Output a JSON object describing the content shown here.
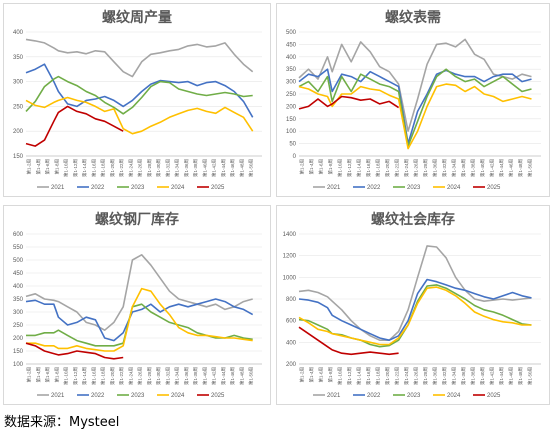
{
  "source_label": "数据来源：Mysteel",
  "series_names": [
    "2021",
    "2022",
    "2023",
    "2024",
    "2025"
  ],
  "series_colors": [
    "#a5a5a5",
    "#4472c4",
    "#70ad47",
    "#ffc000",
    "#c00000"
  ],
  "x_tick_labels": [
    "第1-2周",
    "第1-4周",
    "第1-6周",
    "第1-8周",
    "第1-10周",
    "第1-12周",
    "第1-14周",
    "第1-16周",
    "第1-18周",
    "第1-20周",
    "第1-22周",
    "第1-24周",
    "第1-26周",
    "第1-28周",
    "第1-30周",
    "第1-32周",
    "第1-34周",
    "第1-36周",
    "第1-38周",
    "第1-40周",
    "第1-42周",
    "第1-44周",
    "第1-46周",
    "第1-48周",
    "第1-50周"
  ],
  "chart_data": [
    {
      "type": "line",
      "title": "螺纹周产量",
      "ylim": [
        150,
        400
      ],
      "yticks": [
        150,
        200,
        250,
        300,
        350,
        400
      ],
      "series": [
        {
          "name": "2021",
          "x": [
            1,
            3,
            5,
            7,
            8,
            10,
            12,
            14,
            16,
            18,
            20,
            22,
            24,
            26,
            28,
            30,
            32,
            34,
            36,
            38,
            40,
            42,
            44,
            46,
            48,
            50
          ],
          "values": [
            385,
            382,
            378,
            368,
            362,
            358,
            360,
            356,
            362,
            360,
            340,
            320,
            310,
            340,
            355,
            358,
            362,
            365,
            372,
            375,
            370,
            372,
            378,
            355,
            335,
            320
          ]
        },
        {
          "name": "2022",
          "x": [
            1,
            3,
            5,
            7,
            8,
            10,
            12,
            14,
            16,
            18,
            20,
            22,
            24,
            26,
            28,
            30,
            32,
            34,
            36,
            38,
            40,
            42,
            44,
            46,
            48,
            50
          ],
          "values": [
            318,
            325,
            335,
            300,
            280,
            255,
            250,
            262,
            265,
            270,
            262,
            250,
            262,
            280,
            295,
            302,
            300,
            298,
            300,
            292,
            298,
            300,
            292,
            280,
            260,
            228
          ]
        },
        {
          "name": "2023",
          "x": [
            1,
            3,
            5,
            7,
            8,
            10,
            12,
            14,
            16,
            18,
            20,
            22,
            24,
            26,
            28,
            30,
            32,
            34,
            36,
            38,
            40,
            42,
            44,
            46,
            48,
            50
          ],
          "values": [
            240,
            260,
            290,
            305,
            310,
            300,
            292,
            280,
            272,
            258,
            248,
            235,
            248,
            268,
            290,
            300,
            298,
            285,
            280,
            275,
            272,
            275,
            278,
            275,
            270,
            272
          ]
        },
        {
          "name": "2024",
          "x": [
            1,
            3,
            5,
            7,
            8,
            10,
            12,
            14,
            16,
            18,
            20,
            22,
            24,
            26,
            28,
            30,
            32,
            34,
            36,
            38,
            40,
            42,
            44,
            46,
            48,
            50
          ],
          "values": [
            262,
            252,
            248,
            258,
            262,
            268,
            262,
            258,
            250,
            240,
            245,
            205,
            195,
            200,
            210,
            218,
            228,
            235,
            242,
            246,
            240,
            236,
            248,
            238,
            228,
            200
          ]
        },
        {
          "name": "2025",
          "x": [
            1,
            3,
            5,
            7,
            8,
            10,
            12,
            14,
            16,
            18,
            20,
            22
          ],
          "values": [
            175,
            170,
            182,
            220,
            238,
            250,
            240,
            235,
            225,
            220,
            210,
            200
          ]
        }
      ]
    },
    {
      "type": "line",
      "title": "螺纹表需",
      "ylim": [
        0,
        500
      ],
      "yticks": [
        0,
        50,
        100,
        150,
        200,
        250,
        300,
        350,
        400,
        450,
        500
      ],
      "series": [
        {
          "name": "2021",
          "x": [
            1,
            3,
            5,
            7,
            8,
            10,
            12,
            14,
            16,
            18,
            20,
            22,
            24,
            26,
            28,
            30,
            32,
            34,
            36,
            38,
            40,
            42,
            44,
            46,
            48,
            50
          ],
          "values": [
            315,
            350,
            310,
            400,
            340,
            450,
            380,
            460,
            420,
            360,
            340,
            290,
            100,
            230,
            370,
            450,
            455,
            440,
            470,
            410,
            390,
            330,
            320,
            310,
            330,
            320
          ]
        },
        {
          "name": "2022",
          "x": [
            1,
            3,
            5,
            7,
            8,
            10,
            12,
            14,
            16,
            18,
            20,
            22,
            24,
            26,
            28,
            30,
            32,
            34,
            36,
            38,
            40,
            42,
            44,
            46,
            48,
            50
          ],
          "values": [
            300,
            330,
            320,
            350,
            260,
            330,
            320,
            300,
            340,
            320,
            300,
            280,
            50,
            180,
            250,
            330,
            345,
            330,
            320,
            320,
            300,
            320,
            330,
            330,
            300,
            310
          ]
        },
        {
          "name": "2023",
          "x": [
            1,
            3,
            5,
            7,
            8,
            10,
            12,
            14,
            16,
            18,
            20,
            22,
            24,
            26,
            28,
            30,
            32,
            34,
            36,
            38,
            40,
            42,
            44,
            46,
            48,
            50
          ],
          "values": [
            280,
            300,
            260,
            320,
            220,
            320,
            260,
            330,
            310,
            290,
            280,
            260,
            40,
            140,
            240,
            320,
            350,
            320,
            300,
            310,
            280,
            300,
            320,
            290,
            260,
            270
          ]
        },
        {
          "name": "2024",
          "x": [
            1,
            3,
            5,
            7,
            8,
            10,
            12,
            14,
            16,
            18,
            20,
            22,
            24,
            26,
            28,
            30,
            32,
            34,
            36,
            38,
            40,
            42,
            44,
            46,
            48,
            50
          ],
          "values": [
            280,
            270,
            250,
            240,
            200,
            250,
            250,
            280,
            270,
            265,
            245,
            230,
            30,
            100,
            200,
            280,
            290,
            285,
            260,
            280,
            250,
            240,
            220,
            230,
            240,
            230
          ]
        },
        {
          "name": "2025",
          "x": [
            1,
            3,
            5,
            7,
            8,
            10,
            12,
            14,
            16,
            18,
            20,
            22
          ],
          "values": [
            190,
            200,
            230,
            200,
            210,
            240,
            235,
            225,
            230,
            210,
            220,
            195
          ]
        }
      ]
    },
    {
      "type": "line",
      "title": "螺纹钢厂库存",
      "ylim": [
        100,
        600
      ],
      "yticks": [
        100,
        150,
        200,
        250,
        300,
        350,
        400,
        450,
        500,
        550,
        600
      ],
      "series": [
        {
          "name": "2021",
          "x": [
            1,
            3,
            5,
            7,
            8,
            10,
            12,
            14,
            16,
            18,
            20,
            22,
            24,
            26,
            28,
            30,
            32,
            34,
            36,
            38,
            40,
            42,
            44,
            46,
            48,
            50
          ],
          "values": [
            360,
            370,
            350,
            345,
            340,
            320,
            300,
            260,
            250,
            230,
            260,
            320,
            500,
            520,
            480,
            430,
            380,
            350,
            340,
            330,
            320,
            330,
            310,
            320,
            340,
            350
          ]
        },
        {
          "name": "2022",
          "x": [
            1,
            3,
            5,
            7,
            8,
            10,
            12,
            14,
            16,
            18,
            20,
            22,
            24,
            26,
            28,
            30,
            32,
            34,
            36,
            38,
            40,
            42,
            44,
            46,
            48,
            50
          ],
          "values": [
            340,
            345,
            330,
            330,
            280,
            250,
            260,
            280,
            270,
            200,
            190,
            220,
            300,
            310,
            330,
            300,
            320,
            330,
            320,
            330,
            340,
            350,
            340,
            320,
            310,
            290
          ]
        },
        {
          "name": "2023",
          "x": [
            1,
            3,
            5,
            7,
            8,
            10,
            12,
            14,
            16,
            18,
            20,
            22,
            24,
            26,
            28,
            30,
            32,
            34,
            36,
            38,
            40,
            42,
            44,
            46,
            48,
            50
          ],
          "values": [
            210,
            210,
            220,
            220,
            230,
            210,
            190,
            180,
            170,
            170,
            170,
            180,
            320,
            330,
            300,
            280,
            260,
            250,
            240,
            220,
            210,
            200,
            200,
            210,
            200,
            195
          ]
        },
        {
          "name": "2024",
          "x": [
            1,
            3,
            5,
            7,
            8,
            10,
            12,
            14,
            16,
            18,
            20,
            22,
            24,
            26,
            28,
            30,
            32,
            34,
            36,
            38,
            40,
            42,
            44,
            46,
            48,
            50
          ],
          "values": [
            180,
            180,
            170,
            170,
            160,
            160,
            170,
            160,
            155,
            150,
            150,
            170,
            320,
            390,
            380,
            330,
            290,
            240,
            220,
            210,
            210,
            205,
            200,
            200,
            195,
            190
          ]
        },
        {
          "name": "2025",
          "x": [
            1,
            3,
            5,
            7,
            8,
            10,
            12,
            14,
            16,
            18,
            20,
            22
          ],
          "values": [
            180,
            170,
            150,
            140,
            135,
            140,
            150,
            145,
            140,
            125,
            120,
            125
          ]
        }
      ]
    },
    {
      "type": "line",
      "title": "螺纹社会库存",
      "ylim": [
        200,
        1400
      ],
      "yticks": [
        200,
        400,
        600,
        800,
        1000,
        1200,
        1400
      ],
      "series": [
        {
          "name": "2021",
          "x": [
            1,
            3,
            5,
            7,
            8,
            10,
            12,
            14,
            16,
            18,
            20,
            22,
            24,
            26,
            28,
            30,
            32,
            34,
            36,
            38,
            40,
            42,
            44,
            46,
            48,
            50
          ],
          "values": [
            870,
            880,
            860,
            820,
            780,
            700,
            600,
            520,
            460,
            420,
            420,
            500,
            700,
            1000,
            1290,
            1280,
            1180,
            1000,
            880,
            800,
            780,
            790,
            800,
            790,
            800,
            810
          ]
        },
        {
          "name": "2022",
          "x": [
            1,
            3,
            5,
            7,
            8,
            10,
            12,
            14,
            16,
            18,
            20,
            22,
            24,
            26,
            28,
            30,
            32,
            34,
            36,
            38,
            40,
            42,
            44,
            46,
            48,
            50
          ],
          "values": [
            800,
            790,
            770,
            720,
            650,
            600,
            560,
            520,
            480,
            440,
            420,
            460,
            600,
            850,
            980,
            960,
            930,
            900,
            880,
            850,
            820,
            800,
            830,
            860,
            830,
            810
          ]
        },
        {
          "name": "2023",
          "x": [
            1,
            3,
            5,
            7,
            8,
            10,
            12,
            14,
            16,
            18,
            20,
            22,
            24,
            26,
            28,
            30,
            32,
            34,
            36,
            38,
            40,
            42,
            44,
            46,
            48,
            50
          ],
          "values": [
            610,
            600,
            560,
            520,
            480,
            470,
            440,
            420,
            380,
            360,
            370,
            420,
            560,
            780,
            920,
            930,
            900,
            850,
            800,
            740,
            700,
            680,
            650,
            610,
            570,
            560
          ]
        },
        {
          "name": "2024",
          "x": [
            1,
            3,
            5,
            7,
            8,
            10,
            12,
            14,
            16,
            18,
            20,
            22,
            24,
            26,
            28,
            30,
            32,
            34,
            36,
            38,
            40,
            42,
            44,
            46,
            48,
            50
          ],
          "values": [
            630,
            580,
            520,
            500,
            480,
            460,
            440,
            420,
            400,
            380,
            380,
            440,
            560,
            760,
            900,
            910,
            880,
            830,
            760,
            680,
            640,
            610,
            590,
            580,
            560,
            560
          ]
        },
        {
          "name": "2025",
          "x": [
            1,
            3,
            5,
            7,
            8,
            10,
            12,
            14,
            16,
            18,
            20,
            22
          ],
          "values": [
            540,
            480,
            420,
            360,
            330,
            300,
            290,
            300,
            310,
            300,
            290,
            300
          ]
        }
      ]
    }
  ]
}
